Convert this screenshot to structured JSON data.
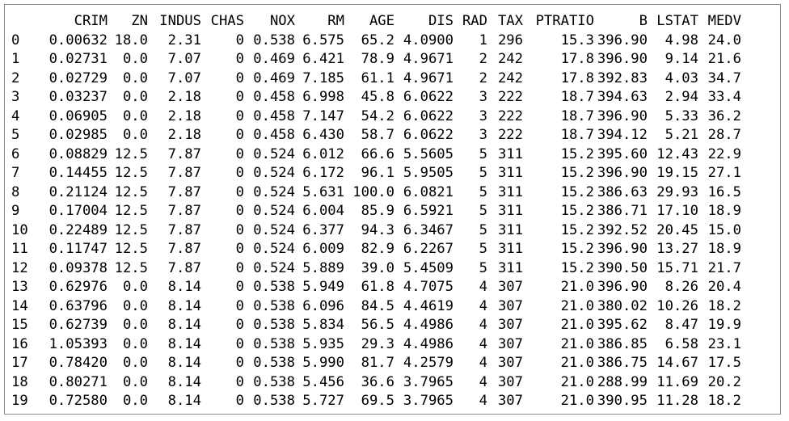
{
  "table": {
    "columns": [
      "CRIM",
      "ZN",
      "INDUS",
      "CHAS",
      "NOX",
      "RM",
      "AGE",
      "DIS",
      "RAD",
      "TAX",
      "PTRATIO",
      "B",
      "LSTAT",
      "MEDV"
    ],
    "rows": [
      {
        "index": "0",
        "values": [
          "0.00632",
          "18.0",
          "2.31",
          "0",
          "0.538",
          "6.575",
          "65.2",
          "4.0900",
          "1",
          "296",
          "15.3",
          "396.90",
          "4.98",
          "24.0"
        ]
      },
      {
        "index": "1",
        "values": [
          "0.02731",
          "0.0",
          "7.07",
          "0",
          "0.469",
          "6.421",
          "78.9",
          "4.9671",
          "2",
          "242",
          "17.8",
          "396.90",
          "9.14",
          "21.6"
        ]
      },
      {
        "index": "2",
        "values": [
          "0.02729",
          "0.0",
          "7.07",
          "0",
          "0.469",
          "7.185",
          "61.1",
          "4.9671",
          "2",
          "242",
          "17.8",
          "392.83",
          "4.03",
          "34.7"
        ]
      },
      {
        "index": "3",
        "values": [
          "0.03237",
          "0.0",
          "2.18",
          "0",
          "0.458",
          "6.998",
          "45.8",
          "6.0622",
          "3",
          "222",
          "18.7",
          "394.63",
          "2.94",
          "33.4"
        ]
      },
      {
        "index": "4",
        "values": [
          "0.06905",
          "0.0",
          "2.18",
          "0",
          "0.458",
          "7.147",
          "54.2",
          "6.0622",
          "3",
          "222",
          "18.7",
          "396.90",
          "5.33",
          "36.2"
        ]
      },
      {
        "index": "5",
        "values": [
          "0.02985",
          "0.0",
          "2.18",
          "0",
          "0.458",
          "6.430",
          "58.7",
          "6.0622",
          "3",
          "222",
          "18.7",
          "394.12",
          "5.21",
          "28.7"
        ]
      },
      {
        "index": "6",
        "values": [
          "0.08829",
          "12.5",
          "7.87",
          "0",
          "0.524",
          "6.012",
          "66.6",
          "5.5605",
          "5",
          "311",
          "15.2",
          "395.60",
          "12.43",
          "22.9"
        ]
      },
      {
        "index": "7",
        "values": [
          "0.14455",
          "12.5",
          "7.87",
          "0",
          "0.524",
          "6.172",
          "96.1",
          "5.9505",
          "5",
          "311",
          "15.2",
          "396.90",
          "19.15",
          "27.1"
        ]
      },
      {
        "index": "8",
        "values": [
          "0.21124",
          "12.5",
          "7.87",
          "0",
          "0.524",
          "5.631",
          "100.0",
          "6.0821",
          "5",
          "311",
          "15.2",
          "386.63",
          "29.93",
          "16.5"
        ]
      },
      {
        "index": "9",
        "values": [
          "0.17004",
          "12.5",
          "7.87",
          "0",
          "0.524",
          "6.004",
          "85.9",
          "6.5921",
          "5",
          "311",
          "15.2",
          "386.71",
          "17.10",
          "18.9"
        ]
      },
      {
        "index": "10",
        "values": [
          "0.22489",
          "12.5",
          "7.87",
          "0",
          "0.524",
          "6.377",
          "94.3",
          "6.3467",
          "5",
          "311",
          "15.2",
          "392.52",
          "20.45",
          "15.0"
        ]
      },
      {
        "index": "11",
        "values": [
          "0.11747",
          "12.5",
          "7.87",
          "0",
          "0.524",
          "6.009",
          "82.9",
          "6.2267",
          "5",
          "311",
          "15.2",
          "396.90",
          "13.27",
          "18.9"
        ]
      },
      {
        "index": "12",
        "values": [
          "0.09378",
          "12.5",
          "7.87",
          "0",
          "0.524",
          "5.889",
          "39.0",
          "5.4509",
          "5",
          "311",
          "15.2",
          "390.50",
          "15.71",
          "21.7"
        ]
      },
      {
        "index": "13",
        "values": [
          "0.62976",
          "0.0",
          "8.14",
          "0",
          "0.538",
          "5.949",
          "61.8",
          "4.7075",
          "4",
          "307",
          "21.0",
          "396.90",
          "8.26",
          "20.4"
        ]
      },
      {
        "index": "14",
        "values": [
          "0.63796",
          "0.0",
          "8.14",
          "0",
          "0.538",
          "6.096",
          "84.5",
          "4.4619",
          "4",
          "307",
          "21.0",
          "380.02",
          "10.26",
          "18.2"
        ]
      },
      {
        "index": "15",
        "values": [
          "0.62739",
          "0.0",
          "8.14",
          "0",
          "0.538",
          "5.834",
          "56.5",
          "4.4986",
          "4",
          "307",
          "21.0",
          "395.62",
          "8.47",
          "19.9"
        ]
      },
      {
        "index": "16",
        "values": [
          "1.05393",
          "0.0",
          "8.14",
          "0",
          "0.538",
          "5.935",
          "29.3",
          "4.4986",
          "4",
          "307",
          "21.0",
          "386.85",
          "6.58",
          "23.1"
        ]
      },
      {
        "index": "17",
        "values": [
          "0.78420",
          "0.0",
          "8.14",
          "0",
          "0.538",
          "5.990",
          "81.7",
          "4.2579",
          "4",
          "307",
          "21.0",
          "386.75",
          "14.67",
          "17.5"
        ]
      },
      {
        "index": "18",
        "values": [
          "0.80271",
          "0.0",
          "8.14",
          "0",
          "0.538",
          "5.456",
          "36.6",
          "3.7965",
          "4",
          "307",
          "21.0",
          "288.99",
          "11.69",
          "20.2"
        ]
      },
      {
        "index": "19",
        "values": [
          "0.72580",
          "0.0",
          "8.14",
          "0",
          "0.538",
          "5.727",
          "69.5",
          "3.7965",
          "4",
          "307",
          "21.0",
          "390.95",
          "11.28",
          "18.2"
        ]
      }
    ]
  }
}
